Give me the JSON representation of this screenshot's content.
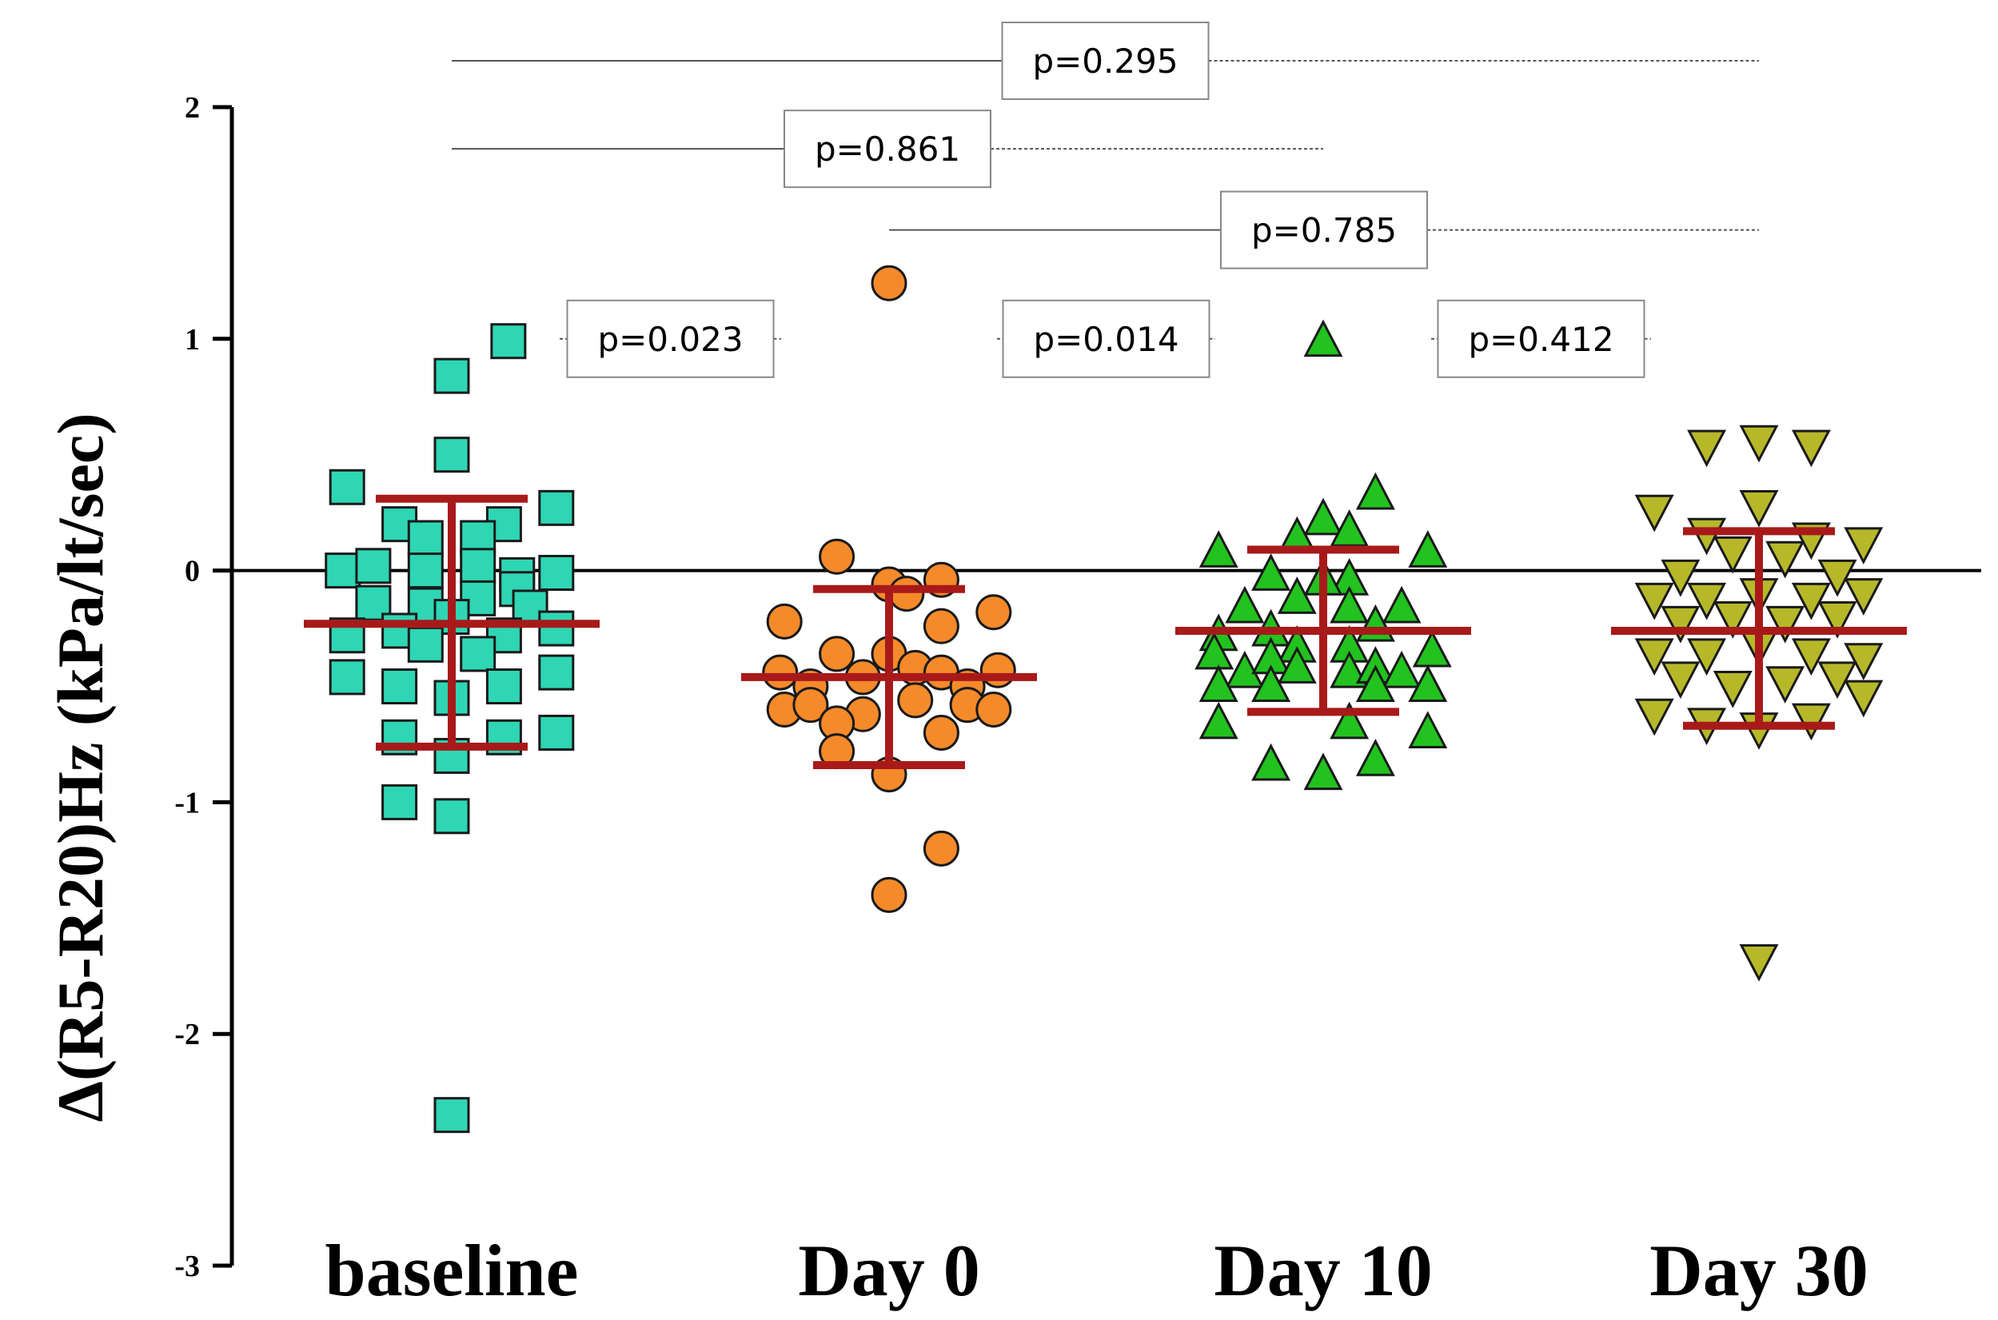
{
  "chart_data": {
    "type": "scatter",
    "title": "",
    "xlabel": "",
    "ylabel": "Δ(R5-R20)Hz (kPa/lt/sec)",
    "ylim": [
      -3,
      2
    ],
    "yticks": [
      "2",
      "1",
      "0",
      "-1",
      "-2",
      "-3"
    ],
    "reference_line": 0,
    "categories": [
      "baseline",
      "Day 0",
      "Day 10",
      "Day 30"
    ],
    "series": [
      {
        "name": "baseline",
        "marker": "square",
        "color": "#2ed6b4",
        "mean": -0.23,
        "sd_upper": 0.31,
        "sd_lower": -0.76,
        "points": [
          {
            "dx": 0.13,
            "y": 0.99
          },
          {
            "dx": 0.0,
            "y": 0.84
          },
          {
            "dx": 0.0,
            "y": 0.5
          },
          {
            "dx": -0.24,
            "y": 0.36
          },
          {
            "dx": 0.24,
            "y": 0.27
          },
          {
            "dx": -0.12,
            "y": 0.2
          },
          {
            "dx": 0.12,
            "y": 0.2
          },
          {
            "dx": -0.06,
            "y": 0.14
          },
          {
            "dx": 0.06,
            "y": 0.14
          },
          {
            "dx": -0.25,
            "y": 0.0
          },
          {
            "dx": -0.18,
            "y": 0.02
          },
          {
            "dx": -0.06,
            "y": 0.0
          },
          {
            "dx": 0.06,
            "y": 0.02
          },
          {
            "dx": 0.15,
            "y": -0.02
          },
          {
            "dx": 0.24,
            "y": -0.01
          },
          {
            "dx": 0.15,
            "y": -0.08
          },
          {
            "dx": -0.18,
            "y": -0.14
          },
          {
            "dx": -0.06,
            "y": -0.15
          },
          {
            "dx": 0.06,
            "y": -0.12
          },
          {
            "dx": 0.18,
            "y": -0.16
          },
          {
            "dx": -0.24,
            "y": -0.28
          },
          {
            "dx": -0.12,
            "y": -0.26
          },
          {
            "dx": 0.0,
            "y": -0.2
          },
          {
            "dx": 0.12,
            "y": -0.28
          },
          {
            "dx": 0.24,
            "y": -0.25
          },
          {
            "dx": -0.06,
            "y": -0.32
          },
          {
            "dx": 0.06,
            "y": -0.36
          },
          {
            "dx": -0.24,
            "y": -0.46
          },
          {
            "dx": -0.12,
            "y": -0.5
          },
          {
            "dx": 0.12,
            "y": -0.5
          },
          {
            "dx": 0.24,
            "y": -0.44
          },
          {
            "dx": 0.0,
            "y": -0.55
          },
          {
            "dx": -0.12,
            "y": -0.72
          },
          {
            "dx": 0.12,
            "y": -0.72
          },
          {
            "dx": 0.24,
            "y": -0.7
          },
          {
            "dx": 0.0,
            "y": -0.8
          },
          {
            "dx": -0.12,
            "y": -1.0
          },
          {
            "dx": 0.0,
            "y": -1.06
          },
          {
            "dx": 0.0,
            "y": -2.35
          }
        ]
      },
      {
        "name": "Day 0",
        "marker": "circle",
        "color": "#f58a2a",
        "mean": -0.46,
        "sd_upper": -0.08,
        "sd_lower": -0.84,
        "points": [
          {
            "dx": 0.0,
            "y": 1.24
          },
          {
            "dx": -0.12,
            "y": 0.06
          },
          {
            "dx": 0.0,
            "y": -0.06
          },
          {
            "dx": 0.12,
            "y": -0.04
          },
          {
            "dx": 0.04,
            "y": -0.1
          },
          {
            "dx": 0.24,
            "y": -0.18
          },
          {
            "dx": -0.24,
            "y": -0.22
          },
          {
            "dx": 0.12,
            "y": -0.24
          },
          {
            "dx": -0.12,
            "y": -0.36
          },
          {
            "dx": 0.0,
            "y": -0.36
          },
          {
            "dx": -0.25,
            "y": -0.44
          },
          {
            "dx": -0.18,
            "y": -0.5
          },
          {
            "dx": -0.06,
            "y": -0.46
          },
          {
            "dx": 0.06,
            "y": -0.42
          },
          {
            "dx": 0.12,
            "y": -0.44
          },
          {
            "dx": 0.18,
            "y": -0.5
          },
          {
            "dx": 0.25,
            "y": -0.43
          },
          {
            "dx": -0.24,
            "y": -0.6
          },
          {
            "dx": -0.18,
            "y": -0.58
          },
          {
            "dx": -0.06,
            "y": -0.62
          },
          {
            "dx": 0.06,
            "y": -0.56
          },
          {
            "dx": 0.18,
            "y": -0.58
          },
          {
            "dx": 0.24,
            "y": -0.6
          },
          {
            "dx": -0.12,
            "y": -0.66
          },
          {
            "dx": 0.12,
            "y": -0.7
          },
          {
            "dx": -0.12,
            "y": -0.78
          },
          {
            "dx": 0.0,
            "y": -0.88
          },
          {
            "dx": 0.12,
            "y": -1.2
          },
          {
            "dx": 0.0,
            "y": -1.4
          }
        ]
      },
      {
        "name": "Day 10",
        "marker": "triangle-up",
        "color": "#22c21f",
        "mean": -0.26,
        "sd_upper": 0.09,
        "sd_lower": -0.61,
        "points": [
          {
            "dx": 0.0,
            "y": 0.99
          },
          {
            "dx": 0.12,
            "y": 0.33
          },
          {
            "dx": 0.0,
            "y": 0.22
          },
          {
            "dx": 0.06,
            "y": 0.17
          },
          {
            "dx": -0.06,
            "y": 0.14
          },
          {
            "dx": -0.24,
            "y": 0.08
          },
          {
            "dx": 0.24,
            "y": 0.08
          },
          {
            "dx": -0.12,
            "y": -0.02
          },
          {
            "dx": 0.06,
            "y": -0.04
          },
          {
            "dx": -0.06,
            "y": -0.12
          },
          {
            "dx": 0.0,
            "y": -0.04
          },
          {
            "dx": -0.18,
            "y": -0.16
          },
          {
            "dx": 0.06,
            "y": -0.16
          },
          {
            "dx": 0.18,
            "y": -0.16
          },
          {
            "dx": -0.24,
            "y": -0.28
          },
          {
            "dx": -0.12,
            "y": -0.26
          },
          {
            "dx": 0.12,
            "y": -0.24
          },
          {
            "dx": -0.06,
            "y": -0.33
          },
          {
            "dx": 0.06,
            "y": -0.33
          },
          {
            "dx": -0.25,
            "y": -0.36
          },
          {
            "dx": 0.25,
            "y": -0.35
          },
          {
            "dx": -0.18,
            "y": -0.44
          },
          {
            "dx": -0.12,
            "y": -0.38
          },
          {
            "dx": -0.06,
            "y": -0.42
          },
          {
            "dx": 0.06,
            "y": -0.44
          },
          {
            "dx": 0.12,
            "y": -0.42
          },
          {
            "dx": 0.18,
            "y": -0.44
          },
          {
            "dx": -0.24,
            "y": -0.5
          },
          {
            "dx": -0.12,
            "y": -0.5
          },
          {
            "dx": 0.12,
            "y": -0.5
          },
          {
            "dx": 0.24,
            "y": -0.5
          },
          {
            "dx": -0.24,
            "y": -0.66
          },
          {
            "dx": 0.06,
            "y": -0.66
          },
          {
            "dx": 0.24,
            "y": -0.7
          },
          {
            "dx": -0.12,
            "y": -0.84
          },
          {
            "dx": 0.0,
            "y": -0.88
          },
          {
            "dx": 0.12,
            "y": -0.82
          }
        ]
      },
      {
        "name": "Day 30",
        "marker": "triangle-down",
        "color": "#b6b82a",
        "mean": -0.26,
        "sd_upper": 0.17,
        "sd_lower": -0.67,
        "points": [
          {
            "dx": -0.12,
            "y": 0.54
          },
          {
            "dx": 0.0,
            "y": 0.56
          },
          {
            "dx": 0.12,
            "y": 0.54
          },
          {
            "dx": -0.24,
            "y": 0.26
          },
          {
            "dx": 0.0,
            "y": 0.28
          },
          {
            "dx": -0.12,
            "y": 0.16
          },
          {
            "dx": 0.12,
            "y": 0.14
          },
          {
            "dx": 0.24,
            "y": 0.12
          },
          {
            "dx": -0.06,
            "y": 0.08
          },
          {
            "dx": 0.06,
            "y": 0.06
          },
          {
            "dx": -0.18,
            "y": -0.02
          },
          {
            "dx": 0.18,
            "y": -0.02
          },
          {
            "dx": -0.24,
            "y": -0.12
          },
          {
            "dx": -0.12,
            "y": -0.12
          },
          {
            "dx": 0.0,
            "y": -0.1
          },
          {
            "dx": 0.12,
            "y": -0.12
          },
          {
            "dx": 0.24,
            "y": -0.1
          },
          {
            "dx": -0.18,
            "y": -0.22
          },
          {
            "dx": -0.06,
            "y": -0.2
          },
          {
            "dx": 0.06,
            "y": -0.22
          },
          {
            "dx": 0.18,
            "y": -0.2
          },
          {
            "dx": -0.24,
            "y": -0.36
          },
          {
            "dx": -0.12,
            "y": -0.36
          },
          {
            "dx": 0.0,
            "y": -0.32
          },
          {
            "dx": 0.12,
            "y": -0.36
          },
          {
            "dx": 0.24,
            "y": -0.38
          },
          {
            "dx": -0.18,
            "y": -0.46
          },
          {
            "dx": -0.06,
            "y": -0.5
          },
          {
            "dx": 0.06,
            "y": -0.48
          },
          {
            "dx": 0.18,
            "y": -0.46
          },
          {
            "dx": -0.24,
            "y": -0.62
          },
          {
            "dx": -0.12,
            "y": -0.66
          },
          {
            "dx": 0.0,
            "y": -0.68
          },
          {
            "dx": 0.12,
            "y": -0.64
          },
          {
            "dx": 0.24,
            "y": -0.54
          },
          {
            "dx": 0.0,
            "y": -1.68
          }
        ]
      }
    ],
    "annotations": [
      {
        "text": "p=0.295",
        "from": "baseline",
        "to": "Day 30",
        "y": 2.2
      },
      {
        "text": "p=0.861",
        "from": "baseline",
        "to": "Day 10",
        "y": 1.82
      },
      {
        "text": "p=0.785",
        "from": "Day 0",
        "to": "Day 30",
        "y": 1.47
      },
      {
        "text": "p=0.023",
        "from": "baseline",
        "to": "Day 0",
        "y": 1.0
      },
      {
        "text": "p=0.014",
        "from": "Day 0",
        "to": "Day 10",
        "y": 1.0
      },
      {
        "text": "p=0.412",
        "from": "Day 10",
        "to": "Day 30",
        "y": 1.0
      }
    ]
  }
}
